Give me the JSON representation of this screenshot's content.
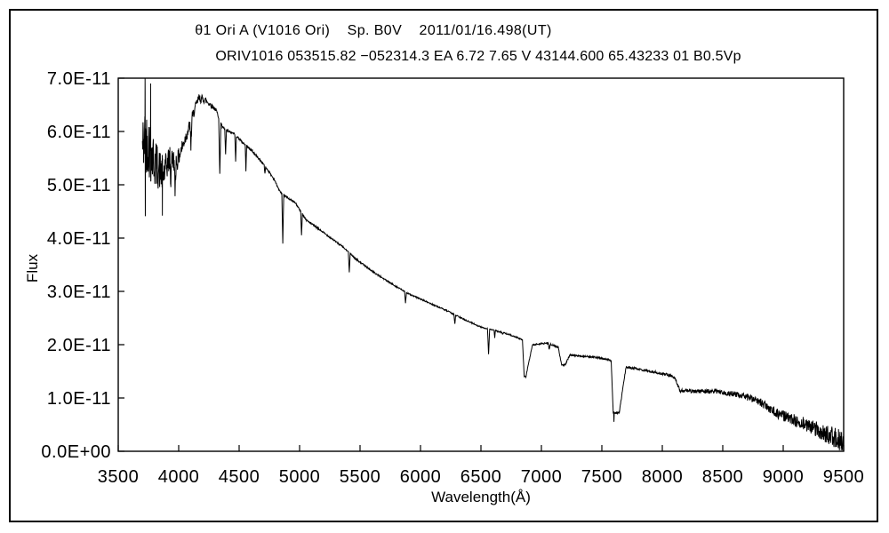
{
  "page": {
    "background": "#ffffff",
    "frame_color": "#000000"
  },
  "header": {
    "title_line1": "θ1 Ori A (V1016 Ori)    Sp. B0V    2011/01/16.498(UT)",
    "title_line2": "ORIV1016 053515.82 −052314.3 EA 6.72 7.65 V 43144.600 65.43233 01 B0.5Vp"
  },
  "chart_data": {
    "type": "line",
    "title": "θ1 Ori A (V1016 Ori)    Sp. B0V    2011/01/16.498(UT)",
    "subtitle": "ORIV1016 053515.82 −052314.3 EA 6.72 7.65 V 43144.600 65.43233 01 B0.5Vp",
    "xlabel": "Wavelength(Å)",
    "ylabel": "Flux",
    "series_name": "spectrum",
    "line_color": "#000000",
    "grid": false,
    "legend": "none",
    "xlim": [
      3500,
      9500
    ],
    "ylim_flux": [
      0,
      7e-11
    ],
    "flux_unit": "1E-11",
    "x_ticks": [
      3500,
      4000,
      4500,
      5000,
      5500,
      6000,
      6500,
      7000,
      7500,
      8000,
      8500,
      9000,
      9500
    ],
    "x_tick_labels": [
      "3500",
      "4000",
      "4500",
      "5000",
      "5500",
      "6000",
      "6500",
      "7000",
      "7500",
      "8000",
      "8500",
      "9000",
      "9500"
    ],
    "y_ticks": [
      0,
      1,
      2,
      3,
      4,
      5,
      6,
      7
    ],
    "y_tick_labels": [
      "0.0E+00",
      "1.0E-11",
      "2.0E-11",
      "3.0E-11",
      "4.0E-11",
      "5.0E-11",
      "6.0E-11",
      "7.0E-11"
    ],
    "x_start": 3700,
    "x_end": 9500,
    "sample_step": 2.5,
    "noise_seed": 42,
    "continuum_points": [
      [
        3700,
        5.7
      ],
      [
        3715,
        5.85
      ],
      [
        3745,
        5.8
      ],
      [
        3785,
        5.5
      ],
      [
        3830,
        5.32
      ],
      [
        3875,
        5.18
      ],
      [
        3920,
        5.48
      ],
      [
        3990,
        5.45
      ],
      [
        4040,
        5.78
      ],
      [
        4090,
        6.1
      ],
      [
        4130,
        6.4
      ],
      [
        4165,
        6.62
      ],
      [
        4215,
        6.6
      ],
      [
        4265,
        6.5
      ],
      [
        4310,
        6.4
      ],
      [
        4360,
        6.08
      ],
      [
        4410,
        6.0
      ],
      [
        4465,
        5.95
      ],
      [
        4525,
        5.8
      ],
      [
        4605,
        5.64
      ],
      [
        4705,
        5.38
      ],
      [
        4790,
        5.1
      ],
      [
        4835,
        4.88
      ],
      [
        4885,
        4.78
      ],
      [
        4965,
        4.66
      ],
      [
        5055,
        4.34
      ],
      [
        5200,
        4.1
      ],
      [
        5355,
        3.84
      ],
      [
        5465,
        3.61
      ],
      [
        5605,
        3.37
      ],
      [
        5755,
        3.15
      ],
      [
        5905,
        2.95
      ],
      [
        6055,
        2.8
      ],
      [
        6205,
        2.65
      ],
      [
        6355,
        2.48
      ],
      [
        6500,
        2.33
      ],
      [
        6605,
        2.27
      ],
      [
        6725,
        2.2
      ],
      [
        6845,
        2.09
      ],
      [
        6905,
        1.98
      ],
      [
        6965,
        2.01
      ],
      [
        7045,
        2.03
      ],
      [
        7095,
        1.99
      ],
      [
        7140,
        1.95
      ],
      [
        7250,
        1.8
      ],
      [
        7360,
        1.78
      ],
      [
        7460,
        1.76
      ],
      [
        7560,
        1.72
      ],
      [
        7660,
        1.6
      ],
      [
        7720,
        1.57
      ],
      [
        7810,
        1.54
      ],
      [
        7965,
        1.47
      ],
      [
        8065,
        1.42
      ],
      [
        8105,
        1.38
      ],
      [
        8145,
        1.14
      ],
      [
        8260,
        1.13
      ],
      [
        8460,
        1.12
      ],
      [
        8660,
        1.05
      ],
      [
        8810,
        0.92
      ],
      [
        8960,
        0.7
      ],
      [
        9110,
        0.57
      ],
      [
        9260,
        0.43
      ],
      [
        9410,
        0.26
      ],
      [
        9500,
        0.15
      ]
    ],
    "absorption_lines": [
      [
        3934,
        5.05,
        7
      ],
      [
        3970,
        4.9,
        9
      ],
      [
        4101,
        5.72,
        9
      ],
      [
        4340,
        5.18,
        9
      ],
      [
        4388,
        5.55,
        7
      ],
      [
        4471,
        5.44,
        7
      ],
      [
        4556,
        5.27,
        6
      ],
      [
        4713,
        5.2,
        6
      ],
      [
        4861,
        3.88,
        8
      ],
      [
        5016,
        4.04,
        7
      ],
      [
        5411,
        3.37,
        8
      ],
      [
        5876,
        2.78,
        8
      ],
      [
        6284,
        2.38,
        7
      ],
      [
        6563,
        1.82,
        9
      ],
      [
        6614,
        2.12,
        5
      ],
      [
        6678,
        2.19,
        6
      ],
      [
        7065,
        1.9,
        7
      ],
      [
        7600,
        0.57,
        6
      ]
    ],
    "telluric_bands": [
      [
        6843,
        6858,
        6872,
        6925,
        1.4
      ],
      [
        7140,
        7168,
        7198,
        7240,
        1.62
      ],
      [
        7577,
        7594,
        7644,
        7700,
        0.72
      ]
    ],
    "noise_profile": [
      [
        3700,
        0.6
      ],
      [
        3770,
        0.6
      ],
      [
        3820,
        0.42
      ],
      [
        3880,
        0.32
      ],
      [
        3940,
        0.22
      ],
      [
        4000,
        0.17
      ],
      [
        4060,
        0.13
      ],
      [
        4150,
        0.09
      ],
      [
        4240,
        0.07
      ],
      [
        4300,
        0.032
      ],
      [
        4400,
        0.022
      ],
      [
        5000,
        0.016
      ],
      [
        6000,
        0.013
      ],
      [
        6800,
        0.012
      ],
      [
        7300,
        0.015
      ],
      [
        7800,
        0.022
      ],
      [
        8200,
        0.032
      ],
      [
        8600,
        0.05
      ],
      [
        8900,
        0.085
      ],
      [
        9100,
        0.115
      ],
      [
        9300,
        0.155
      ],
      [
        9420,
        0.2
      ],
      [
        9500,
        0.24
      ]
    ],
    "spikes": [
      [
        3722,
        7.05
      ],
      [
        3724,
        4.41
      ],
      [
        3768,
        6.9
      ],
      [
        3865,
        4.42
      ]
    ]
  }
}
